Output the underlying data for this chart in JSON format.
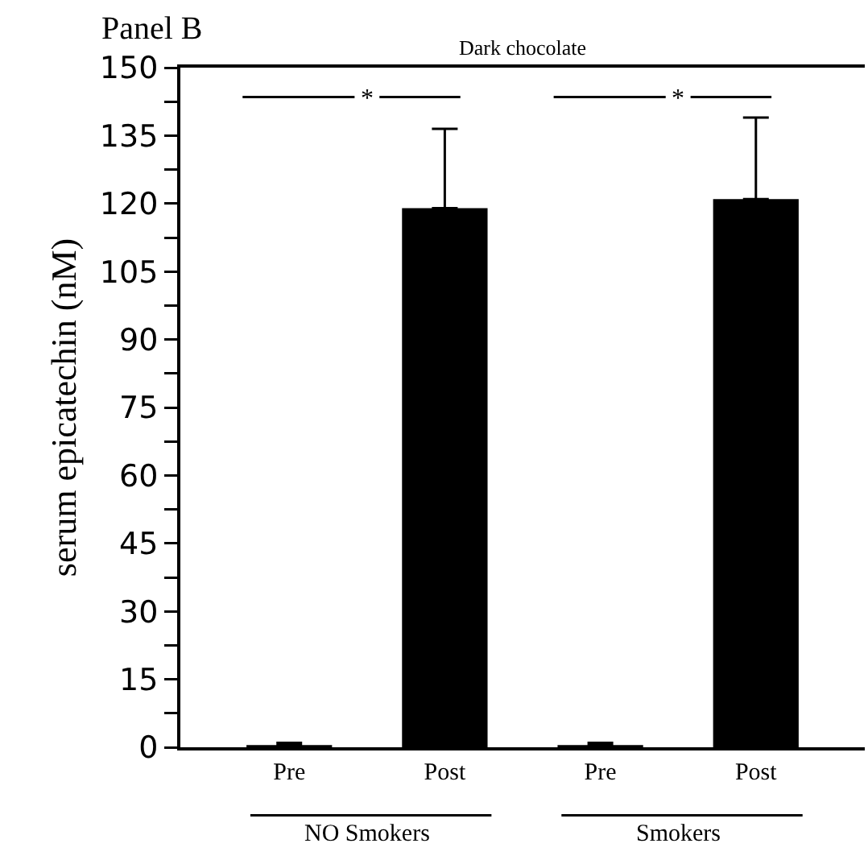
{
  "chart_data": {
    "type": "bar",
    "title": "Dark chocolate",
    "ylabel": "serum epicatechin (nM)",
    "categories": [
      "Pre",
      "Post",
      "Pre",
      "Post"
    ],
    "values": [
      0.5,
      119,
      0.5,
      121
    ],
    "errors": [
      [
        0.5,
        1
      ],
      [
        119,
        136.5
      ],
      [
        0.5,
        1
      ],
      [
        121,
        139
      ]
    ],
    "color": "#000000",
    "ylim": [
      0,
      150
    ],
    "yticks": [
      0,
      {
        "value": 7.5,
        "label": null
      },
      15,
      {
        "value": 22.5,
        "label": null
      },
      30,
      {
        "value": 37.5,
        "label": null
      },
      45,
      {
        "value": 52.5,
        "label": null
      },
      60,
      {
        "value": 67.5,
        "label": null
      },
      75,
      {
        "value": 82.5,
        "label": null
      },
      90,
      {
        "value": 97.5,
        "label": null
      },
      105,
      {
        "value": 112.5,
        "label": null
      },
      120,
      {
        "value": 127.5,
        "label": null
      },
      135,
      {
        "value": 142.5,
        "label": null
      },
      150
    ],
    "grid": false,
    "legend": false,
    "annotations": [
      "Panel B",
      "*",
      "*",
      "NO Smokers",
      "Smokers"
    ]
  }
}
